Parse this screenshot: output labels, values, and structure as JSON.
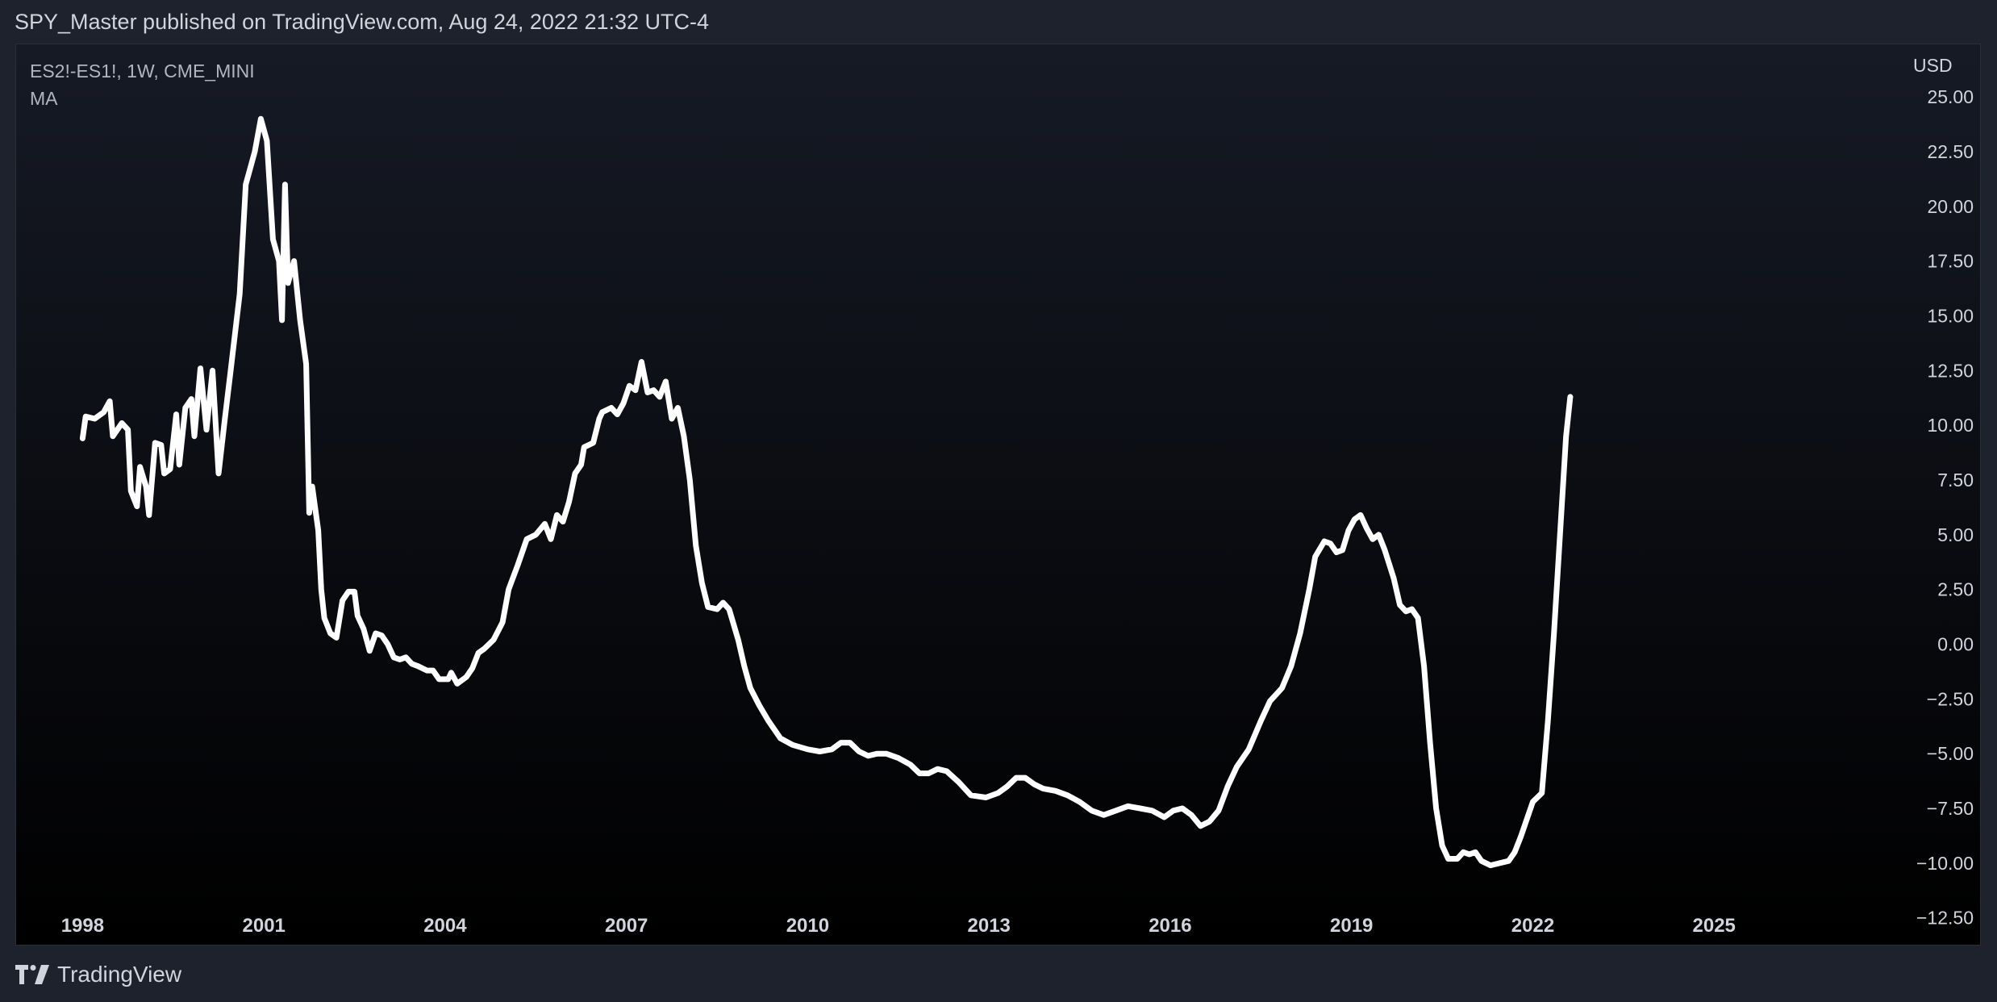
{
  "header": {
    "published": "SPY_Master published on TradingView.com, Aug 24, 2022 21:32 UTC-4"
  },
  "legend": {
    "symbol": "ES2!-ES1!, 1W, CME_MINI",
    "indicator": "MA"
  },
  "footer": {
    "brand": "TradingView",
    "logo_icon": "tradingview-logo-icon"
  },
  "colors": {
    "background": "#1e222d",
    "line": "#ffffff",
    "axis_text": "#d1d4dc"
  },
  "chart_data": {
    "type": "line",
    "ylabel": "USD",
    "xlim": [
      1996.9,
      2027.6
    ],
    "ylim": [
      -13.8,
      27.4
    ],
    "x_ticks": [
      "1998",
      "2001",
      "2004",
      "2007",
      "2010",
      "2013",
      "2016",
      "2019",
      "2022",
      "2025"
    ],
    "y_ticks": [
      "25.00",
      "22.50",
      "20.00",
      "17.50",
      "15.00",
      "12.50",
      "10.00",
      "7.50",
      "5.00",
      "2.50",
      "0.00",
      "−2.50",
      "−5.00",
      "−7.50",
      "−10.00",
      "−12.50"
    ],
    "grid": false,
    "series": [
      {
        "color": "#ffffff",
        "points": [
          [
            1998.0,
            9.4
          ],
          [
            1998.05,
            10.4
          ],
          [
            1998.2,
            10.3
          ],
          [
            1998.35,
            10.6
          ],
          [
            1998.45,
            11.1
          ],
          [
            1998.5,
            9.5
          ],
          [
            1998.65,
            10.1
          ],
          [
            1998.75,
            9.8
          ],
          [
            1998.8,
            7.0
          ],
          [
            1998.9,
            6.3
          ],
          [
            1998.95,
            8.1
          ],
          [
            1999.05,
            7.2
          ],
          [
            1999.1,
            5.9
          ],
          [
            1999.2,
            9.2
          ],
          [
            1999.3,
            9.1
          ],
          [
            1999.35,
            7.8
          ],
          [
            1999.45,
            8.0
          ],
          [
            1999.55,
            10.5
          ],
          [
            1999.6,
            8.2
          ],
          [
            1999.7,
            10.8
          ],
          [
            1999.8,
            11.2
          ],
          [
            1999.85,
            9.5
          ],
          [
            1999.95,
            12.6
          ],
          [
            2000.05,
            9.8
          ],
          [
            2000.15,
            12.5
          ],
          [
            2000.25,
            7.8
          ],
          [
            2000.35,
            10.2
          ],
          [
            2000.45,
            12.5
          ],
          [
            2000.6,
            16.0
          ],
          [
            2000.7,
            21.0
          ],
          [
            2000.85,
            22.5
          ],
          [
            2000.95,
            24.0
          ],
          [
            2001.05,
            23.0
          ],
          [
            2001.15,
            18.5
          ],
          [
            2001.25,
            17.5
          ],
          [
            2001.3,
            14.8
          ],
          [
            2001.35,
            21.0
          ],
          [
            2001.4,
            16.5
          ],
          [
            2001.5,
            17.5
          ],
          [
            2001.6,
            14.8
          ],
          [
            2001.7,
            12.8
          ],
          [
            2001.75,
            6.0
          ],
          [
            2001.8,
            7.2
          ],
          [
            2001.9,
            5.2
          ],
          [
            2001.95,
            2.5
          ],
          [
            2002.0,
            1.2
          ],
          [
            2002.1,
            0.5
          ],
          [
            2002.2,
            0.3
          ],
          [
            2002.3,
            2.0
          ],
          [
            2002.4,
            2.4
          ],
          [
            2002.5,
            2.4
          ],
          [
            2002.55,
            1.3
          ],
          [
            2002.65,
            0.7
          ],
          [
            2002.75,
            -0.3
          ],
          [
            2002.85,
            0.5
          ],
          [
            2002.95,
            0.4
          ],
          [
            2003.05,
            0.0
          ],
          [
            2003.15,
            -0.6
          ],
          [
            2003.25,
            -0.7
          ],
          [
            2003.35,
            -0.6
          ],
          [
            2003.45,
            -0.9
          ],
          [
            2003.55,
            -1.0
          ],
          [
            2003.7,
            -1.2
          ],
          [
            2003.8,
            -1.2
          ],
          [
            2003.9,
            -1.6
          ],
          [
            2004.05,
            -1.6
          ],
          [
            2004.1,
            -1.3
          ],
          [
            2004.2,
            -1.8
          ],
          [
            2004.35,
            -1.5
          ],
          [
            2004.45,
            -1.1
          ],
          [
            2004.55,
            -0.4
          ],
          [
            2004.65,
            -0.2
          ],
          [
            2004.8,
            0.2
          ],
          [
            2004.95,
            1.0
          ],
          [
            2005.05,
            2.5
          ],
          [
            2005.2,
            3.6
          ],
          [
            2005.35,
            4.8
          ],
          [
            2005.5,
            5.0
          ],
          [
            2005.65,
            5.5
          ],
          [
            2005.75,
            4.8
          ],
          [
            2005.85,
            5.9
          ],
          [
            2005.95,
            5.6
          ],
          [
            2006.05,
            6.5
          ],
          [
            2006.15,
            7.8
          ],
          [
            2006.25,
            8.2
          ],
          [
            2006.3,
            9.0
          ],
          [
            2006.45,
            9.2
          ],
          [
            2006.55,
            10.3
          ],
          [
            2006.6,
            10.6
          ],
          [
            2006.75,
            10.8
          ],
          [
            2006.85,
            10.5
          ],
          [
            2006.95,
            11.0
          ],
          [
            2007.05,
            11.8
          ],
          [
            2007.15,
            11.6
          ],
          [
            2007.25,
            12.9
          ],
          [
            2007.35,
            11.5
          ],
          [
            2007.45,
            11.6
          ],
          [
            2007.55,
            11.3
          ],
          [
            2007.65,
            12.0
          ],
          [
            2007.75,
            10.3
          ],
          [
            2007.85,
            10.8
          ],
          [
            2007.95,
            9.5
          ],
          [
            2008.05,
            7.5
          ],
          [
            2008.15,
            4.5
          ],
          [
            2008.25,
            2.8
          ],
          [
            2008.35,
            1.7
          ],
          [
            2008.5,
            1.6
          ],
          [
            2008.6,
            1.9
          ],
          [
            2008.7,
            1.6
          ],
          [
            2008.85,
            0.2
          ],
          [
            2008.95,
            -1.0
          ],
          [
            2009.05,
            -2.0
          ],
          [
            2009.2,
            -2.8
          ],
          [
            2009.35,
            -3.5
          ],
          [
            2009.55,
            -4.3
          ],
          [
            2009.75,
            -4.6
          ],
          [
            2010.0,
            -4.8
          ],
          [
            2010.2,
            -4.9
          ],
          [
            2010.4,
            -4.8
          ],
          [
            2010.55,
            -4.5
          ],
          [
            2010.7,
            -4.5
          ],
          [
            2010.85,
            -4.9
          ],
          [
            2011.0,
            -5.1
          ],
          [
            2011.15,
            -5.0
          ],
          [
            2011.3,
            -5.0
          ],
          [
            2011.5,
            -5.2
          ],
          [
            2011.7,
            -5.5
          ],
          [
            2011.85,
            -5.9
          ],
          [
            2012.0,
            -5.9
          ],
          [
            2012.15,
            -5.7
          ],
          [
            2012.3,
            -5.8
          ],
          [
            2012.5,
            -6.3
          ],
          [
            2012.7,
            -6.9
          ],
          [
            2012.95,
            -7.0
          ],
          [
            2013.15,
            -6.8
          ],
          [
            2013.3,
            -6.5
          ],
          [
            2013.45,
            -6.1
          ],
          [
            2013.6,
            -6.1
          ],
          [
            2013.75,
            -6.4
          ],
          [
            2013.9,
            -6.6
          ],
          [
            2014.1,
            -6.7
          ],
          [
            2014.3,
            -6.9
          ],
          [
            2014.5,
            -7.2
          ],
          [
            2014.7,
            -7.6
          ],
          [
            2014.9,
            -7.8
          ],
          [
            2015.1,
            -7.6
          ],
          [
            2015.3,
            -7.4
          ],
          [
            2015.5,
            -7.5
          ],
          [
            2015.7,
            -7.6
          ],
          [
            2015.9,
            -7.9
          ],
          [
            2016.05,
            -7.6
          ],
          [
            2016.2,
            -7.5
          ],
          [
            2016.35,
            -7.8
          ],
          [
            2016.5,
            -8.3
          ],
          [
            2016.65,
            -8.1
          ],
          [
            2016.8,
            -7.6
          ],
          [
            2016.95,
            -6.5
          ],
          [
            2017.1,
            -5.6
          ],
          [
            2017.3,
            -4.8
          ],
          [
            2017.5,
            -3.5
          ],
          [
            2017.65,
            -2.6
          ],
          [
            2017.85,
            -2.0
          ],
          [
            2018.0,
            -1.0
          ],
          [
            2018.15,
            0.5
          ],
          [
            2018.3,
            2.5
          ],
          [
            2018.4,
            4.0
          ],
          [
            2018.55,
            4.7
          ],
          [
            2018.65,
            4.6
          ],
          [
            2018.75,
            4.2
          ],
          [
            2018.85,
            4.3
          ],
          [
            2018.95,
            5.2
          ],
          [
            2019.05,
            5.7
          ],
          [
            2019.15,
            5.9
          ],
          [
            2019.25,
            5.3
          ],
          [
            2019.35,
            4.8
          ],
          [
            2019.45,
            5.0
          ],
          [
            2019.55,
            4.3
          ],
          [
            2019.7,
            3.0
          ],
          [
            2019.8,
            1.8
          ],
          [
            2019.9,
            1.5
          ],
          [
            2020.0,
            1.6
          ],
          [
            2020.1,
            1.2
          ],
          [
            2020.2,
            -1.0
          ],
          [
            2020.3,
            -4.5
          ],
          [
            2020.4,
            -7.5
          ],
          [
            2020.5,
            -9.2
          ],
          [
            2020.6,
            -9.8
          ],
          [
            2020.75,
            -9.8
          ],
          [
            2020.85,
            -9.5
          ],
          [
            2020.95,
            -9.6
          ],
          [
            2021.05,
            -9.5
          ],
          [
            2021.15,
            -9.9
          ],
          [
            2021.3,
            -10.1
          ],
          [
            2021.45,
            -10.0
          ],
          [
            2021.6,
            -9.9
          ],
          [
            2021.7,
            -9.5
          ],
          [
            2021.8,
            -8.8
          ],
          [
            2021.9,
            -8.0
          ],
          [
            2022.0,
            -7.2
          ],
          [
            2022.15,
            -6.8
          ],
          [
            2022.25,
            -3.5
          ],
          [
            2022.35,
            0.5
          ],
          [
            2022.45,
            5.0
          ],
          [
            2022.55,
            9.5
          ],
          [
            2022.62,
            11.3
          ]
        ]
      }
    ]
  }
}
